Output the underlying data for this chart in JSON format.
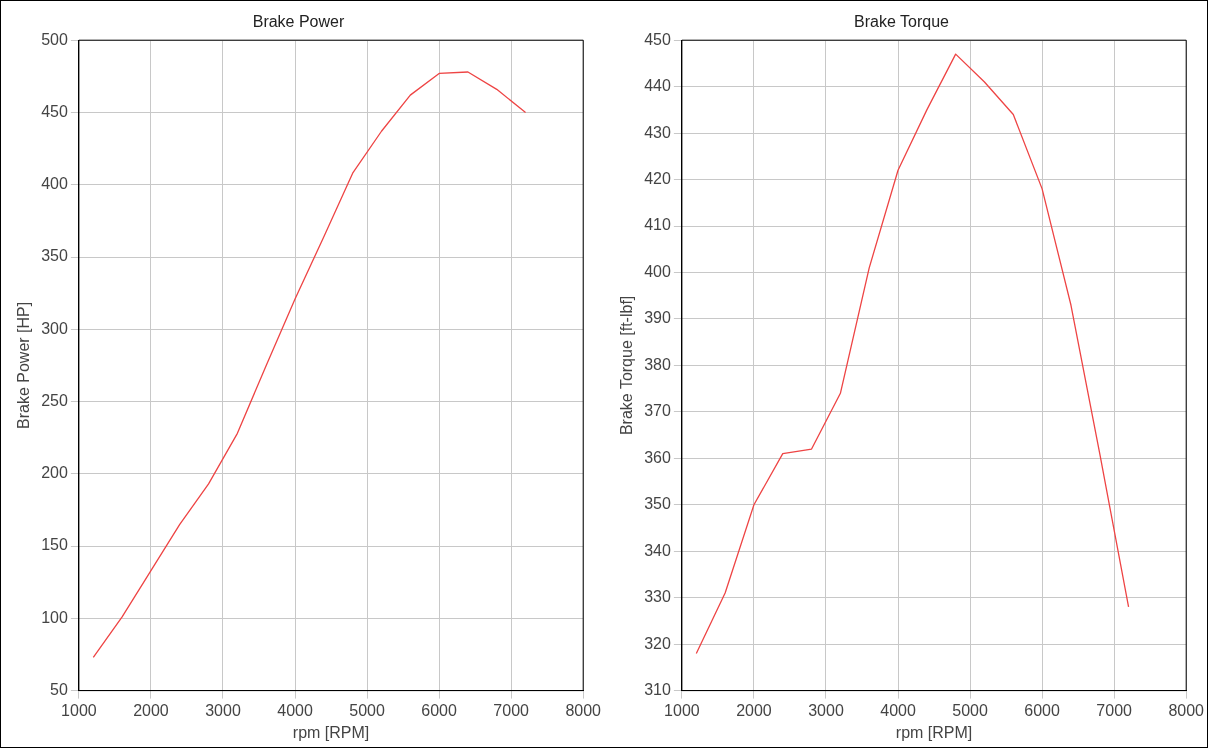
{
  "chart_data": [
    {
      "type": "line",
      "title": "Brake Power",
      "xlabel": "rpm [RPM]",
      "ylabel": "Brake Power [HP]",
      "x": [
        1200,
        1600,
        2000,
        2400,
        2800,
        3200,
        3600,
        4000,
        4400,
        4800,
        5200,
        5600,
        6000,
        6400,
        6800,
        7200
      ],
      "series": [
        {
          "color": "#ee4444",
          "values": [
            73,
            101,
            133,
            165,
            193,
            228,
            275,
            321,
            364,
            408,
            437,
            462,
            477,
            478,
            466,
            450
          ]
        }
      ],
      "xlim": [
        1000,
        8000
      ],
      "xticks": [
        1000,
        2000,
        3000,
        4000,
        5000,
        6000,
        7000,
        8000
      ],
      "ylim": [
        50,
        500
      ],
      "yticks": [
        50,
        100,
        150,
        200,
        250,
        300,
        350,
        400,
        450,
        500
      ],
      "grid": true,
      "marker": "none"
    },
    {
      "type": "line",
      "title": "Brake Torque",
      "xlabel": "rpm [RPM]",
      "ylabel": "Brake Torque [ft-lbf]",
      "x": [
        1200,
        1600,
        2000,
        2400,
        2800,
        3200,
        3600,
        4000,
        4400,
        4800,
        5200,
        5600,
        6000,
        6400,
        6800,
        7200
      ],
      "series": [
        {
          "color": "#ee4444",
          "values": [
            318,
            331,
            350,
            361,
            362,
            374,
            401,
            422,
            435,
            447,
            441,
            434,
            418,
            393,
            361,
            328
          ]
        }
      ],
      "xlim": [
        1000,
        8000
      ],
      "xticks": [
        1000,
        2000,
        3000,
        4000,
        5000,
        6000,
        7000,
        8000
      ],
      "ylim": [
        310,
        450
      ],
      "yticks": [
        310,
        320,
        330,
        340,
        350,
        360,
        370,
        380,
        390,
        400,
        410,
        420,
        430,
        440,
        450
      ],
      "grid": true,
      "marker": "none"
    }
  ]
}
